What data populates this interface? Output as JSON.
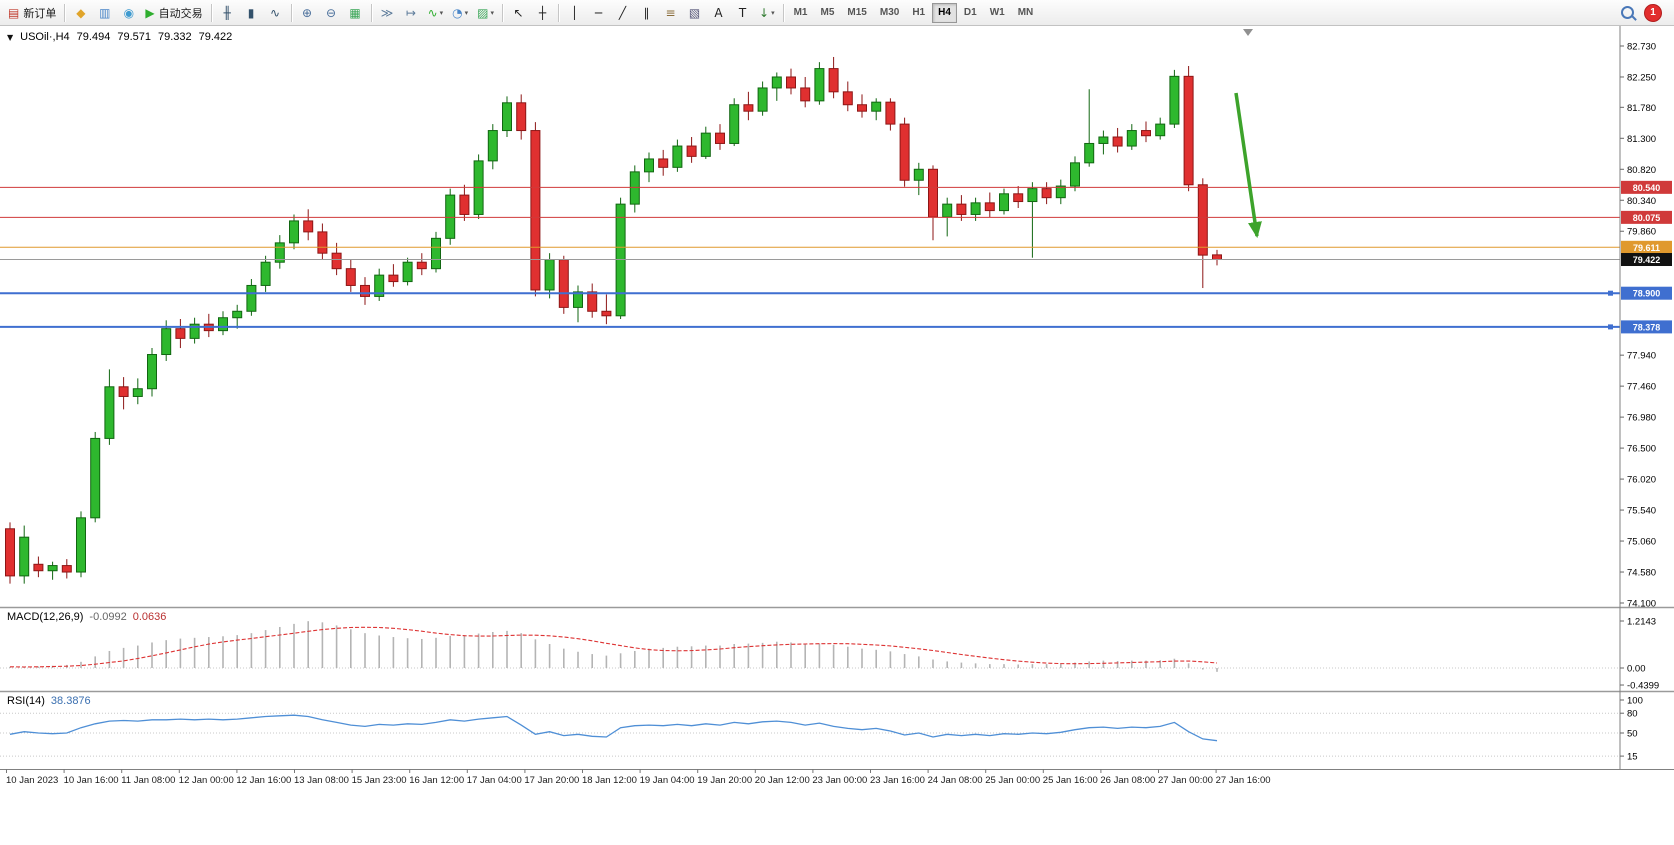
{
  "toolbar": {
    "caret_glyph": "▾",
    "items": [
      {
        "type": "button",
        "name": "new-order-button",
        "icon": "new-order",
        "glyph": "▤",
        "glyph_color": "#c0392b",
        "label": "新订单"
      },
      {
        "type": "sep"
      },
      {
        "type": "button",
        "name": "market-watch-button",
        "icon": "market-watch",
        "glyph": "◆",
        "glyph_color": "#e0a42a"
      },
      {
        "type": "button",
        "name": "data-window-button",
        "icon": "data-window",
        "glyph": "▥",
        "glyph_color": "#4a86c8"
      },
      {
        "type": "button",
        "name": "navigator-button",
        "icon": "navigator",
        "glyph": "◉",
        "glyph_color": "#3f9bd0"
      },
      {
        "type": "button",
        "name": "auto-trading-button",
        "icon": "auto-trading-play",
        "glyph": "▶",
        "glyph_color": "#2fae2f",
        "label": "自动交易"
      },
      {
        "type": "sep"
      },
      {
        "type": "button",
        "name": "bar-chart-mode-button",
        "icon": "ohlc-bars",
        "glyph": "╫",
        "glyph_color": "#33516b"
      },
      {
        "type": "button",
        "name": "candlestick-mode-button",
        "icon": "candlestick",
        "glyph": "▮",
        "glyph_color": "#33516b"
      },
      {
        "type": "button",
        "name": "line-chart-mode-button",
        "icon": "line-chart",
        "glyph": "∿",
        "glyph_color": "#33516b"
      },
      {
        "type": "sep"
      },
      {
        "type": "button",
        "name": "zoom-in-button",
        "icon": "zoom-in",
        "glyph": "⊕",
        "glyph_color": "#4a6f9b"
      },
      {
        "type": "button",
        "name": "zoom-out-button",
        "icon": "zoom-out",
        "glyph": "⊖",
        "glyph_color": "#4a6f9b"
      },
      {
        "type": "button",
        "name": "tile-windows-button",
        "icon": "tile-windows",
        "glyph": "▦",
        "glyph_color": "#3aa657"
      },
      {
        "type": "sep"
      },
      {
        "type": "button",
        "name": "auto-scroll-button",
        "icon": "auto-scroll",
        "glyph": "≫",
        "glyph_color": "#5b7a99"
      },
      {
        "type": "button",
        "name": "chart-shift-button",
        "icon": "chart-shift",
        "glyph": "↦",
        "glyph_color": "#5b7a99"
      },
      {
        "type": "button",
        "name": "indicators-button",
        "icon": "indicators",
        "glyph": "∿",
        "glyph_color": "#2fae2f",
        "caret": true
      },
      {
        "type": "button",
        "name": "periods-button",
        "icon": "clock",
        "glyph": "◔",
        "glyph_color": "#4a86c8",
        "caret": true
      },
      {
        "type": "button",
        "name": "templates-button",
        "icon": "templates",
        "glyph": "▨",
        "glyph_color": "#3aa657",
        "caret": true
      },
      {
        "type": "sep"
      },
      {
        "type": "button",
        "name": "cursor-button",
        "icon": "cursor-arrow",
        "glyph": "↖",
        "glyph_color": "#222222"
      },
      {
        "type": "button",
        "name": "crosshair-button",
        "icon": "crosshair",
        "glyph": "┼",
        "glyph_color": "#222222"
      },
      {
        "type": "sep"
      },
      {
        "type": "button",
        "name": "vertical-line-button",
        "icon": "vertical-line",
        "glyph": "│",
        "glyph_color": "#222222"
      },
      {
        "type": "button",
        "name": "horizontal-line-button",
        "icon": "horizontal-line",
        "glyph": "─",
        "glyph_color": "#222222"
      },
      {
        "type": "button",
        "name": "trendline-button",
        "icon": "trendline",
        "glyph": "╱",
        "glyph_color": "#222222"
      },
      {
        "type": "button",
        "name": "channel-button",
        "icon": "equidistant-channel",
        "glyph": "∥",
        "glyph_color": "#222222"
      },
      {
        "type": "button",
        "name": "fibonacci-button",
        "icon": "fibonacci",
        "glyph": "≡",
        "glyph_color": "#8a6d3b"
      },
      {
        "type": "button",
        "name": "shapes-button",
        "icon": "shapes",
        "glyph": "▧",
        "glyph_color": "#555577"
      },
      {
        "type": "button",
        "name": "text-button",
        "icon": "text",
        "glyph": "A",
        "glyph_color": "#222222"
      },
      {
        "type": "button",
        "name": "text-label-button",
        "icon": "text-label",
        "glyph": "T",
        "glyph_color": "#222222"
      },
      {
        "type": "button",
        "name": "arrows-button",
        "icon": "arrow-objects",
        "glyph": "↓",
        "glyph_color": "#2f7a2f",
        "caret": true
      },
      {
        "type": "sep"
      },
      {
        "type": "tf",
        "label": "M1"
      },
      {
        "type": "tf",
        "label": "M5"
      },
      {
        "type": "tf",
        "label": "M15"
      },
      {
        "type": "tf",
        "label": "M30"
      },
      {
        "type": "tf",
        "label": "H1"
      },
      {
        "type": "tf",
        "label": "H4",
        "active": true
      },
      {
        "type": "tf",
        "label": "D1"
      },
      {
        "type": "tf",
        "label": "W1"
      },
      {
        "type": "tf",
        "label": "MN"
      },
      {
        "type": "spacer"
      },
      {
        "type": "search",
        "name": "search-button"
      },
      {
        "type": "badge",
        "name": "notification-badge",
        "label": "1"
      }
    ]
  },
  "chart": {
    "header": {
      "collapse_icon": "▼",
      "symbol": "USOil·,H4",
      "open": "79.494",
      "high": "79.571",
      "low": "79.332",
      "close": "79.422"
    }
  },
  "chart_data": {
    "type": "candlestick",
    "symbol": "USOil",
    "timeframe": "H4",
    "colors": {
      "up": "#2eb82e",
      "up_border": "#116611",
      "down": "#e03030",
      "down_border": "#8d1616",
      "macd_histogram": "#b4b4b4",
      "macd_signal": "#dd3333",
      "rsi_line": "#4f8fd6",
      "axis_line": "#808080"
    },
    "y_axis": {
      "min": 74.1,
      "max": 82.73,
      "ticks": [
        82.73,
        82.25,
        81.78,
        81.3,
        80.82,
        80.34,
        79.86,
        77.94,
        77.46,
        76.98,
        76.5,
        76.02,
        75.54,
        75.06,
        74.58,
        74.1
      ]
    },
    "hlines": [
      {
        "price": 80.54,
        "label": "80.540",
        "color": "#d03a3a",
        "width": 1,
        "handles": false
      },
      {
        "price": 80.075,
        "label": "80.075",
        "color": "#d03a3a",
        "width": 1,
        "handles": false
      },
      {
        "price": 79.611,
        "label": "79.611",
        "color": "#e0992e",
        "width": 1,
        "handles": false
      },
      {
        "price": 78.9,
        "label": "78.900",
        "color": "#3f6fd0",
        "width": 2,
        "handles": true
      },
      {
        "price": 78.378,
        "label": "78.378",
        "color": "#3f6fd0",
        "width": 2,
        "handles": true
      }
    ],
    "current_price": {
      "price": 79.422,
      "label": "79.422",
      "badge_color": "#111111",
      "line_color": "#9a9a9a"
    },
    "annotation_arrow": {
      "color": "#3da32b",
      "from": [
        1236,
        93
      ],
      "to": [
        1257,
        236
      ]
    },
    "candles": [
      [
        75.25,
        75.35,
        74.4,
        74.52
      ],
      [
        74.52,
        75.3,
        74.4,
        75.12
      ],
      [
        74.7,
        74.82,
        74.5,
        74.6
      ],
      [
        74.6,
        74.74,
        74.46,
        74.68
      ],
      [
        74.68,
        74.78,
        74.48,
        74.58
      ],
      [
        74.58,
        75.52,
        74.5,
        75.42
      ],
      [
        75.42,
        76.75,
        75.35,
        76.65
      ],
      [
        76.65,
        77.72,
        76.55,
        77.45
      ],
      [
        77.45,
        77.6,
        77.1,
        77.3
      ],
      [
        77.3,
        77.58,
        77.18,
        77.42
      ],
      [
        77.42,
        78.05,
        77.3,
        77.95
      ],
      [
        77.95,
        78.48,
        77.85,
        78.35
      ],
      [
        78.35,
        78.5,
        78.05,
        78.2
      ],
      [
        78.2,
        78.52,
        78.12,
        78.42
      ],
      [
        78.42,
        78.58,
        78.22,
        78.32
      ],
      [
        78.32,
        78.62,
        78.25,
        78.52
      ],
      [
        78.52,
        78.72,
        78.35,
        78.62
      ],
      [
        78.62,
        79.12,
        78.55,
        79.02
      ],
      [
        79.02,
        79.48,
        78.92,
        79.38
      ],
      [
        79.38,
        79.8,
        79.28,
        79.68
      ],
      [
        79.68,
        80.12,
        79.58,
        80.02
      ],
      [
        80.02,
        80.2,
        79.72,
        79.85
      ],
      [
        79.85,
        79.98,
        79.42,
        79.52
      ],
      [
        79.52,
        79.68,
        79.18,
        79.28
      ],
      [
        79.28,
        79.42,
        78.92,
        79.02
      ],
      [
        79.02,
        79.15,
        78.72,
        78.85
      ],
      [
        78.85,
        79.28,
        78.78,
        79.18
      ],
      [
        79.18,
        79.35,
        79.0,
        79.08
      ],
      [
        79.08,
        79.45,
        79.02,
        79.38
      ],
      [
        79.38,
        79.52,
        79.18,
        79.28
      ],
      [
        79.28,
        79.85,
        79.22,
        79.75
      ],
      [
        79.75,
        80.52,
        79.65,
        80.42
      ],
      [
        80.42,
        80.58,
        80.02,
        80.12
      ],
      [
        80.12,
        81.05,
        80.05,
        80.95
      ],
      [
        80.95,
        81.52,
        80.82,
        81.42
      ],
      [
        81.42,
        81.95,
        81.32,
        81.85
      ],
      [
        81.85,
        81.98,
        81.28,
        81.42
      ],
      [
        81.42,
        81.55,
        78.85,
        78.95
      ],
      [
        78.95,
        79.52,
        78.82,
        79.42
      ],
      [
        79.42,
        79.48,
        78.58,
        78.68
      ],
      [
        78.68,
        79.02,
        78.45,
        78.92
      ],
      [
        78.92,
        79.05,
        78.52,
        78.62
      ],
      [
        78.62,
        78.88,
        78.42,
        78.55
      ],
      [
        78.55,
        80.38,
        78.5,
        80.28
      ],
      [
        80.28,
        80.88,
        80.15,
        80.78
      ],
      [
        80.78,
        81.08,
        80.62,
        80.98
      ],
      [
        80.98,
        81.12,
        80.72,
        80.85
      ],
      [
        80.85,
        81.28,
        80.78,
        81.18
      ],
      [
        81.18,
        81.32,
        80.92,
        81.02
      ],
      [
        81.02,
        81.48,
        80.98,
        81.38
      ],
      [
        81.38,
        81.52,
        81.12,
        81.22
      ],
      [
        81.22,
        81.92,
        81.18,
        81.82
      ],
      [
        81.82,
        82.02,
        81.58,
        81.72
      ],
      [
        81.72,
        82.18,
        81.65,
        82.08
      ],
      [
        82.08,
        82.32,
        81.88,
        82.25
      ],
      [
        82.25,
        82.38,
        81.98,
        82.08
      ],
      [
        82.08,
        82.25,
        81.78,
        81.88
      ],
      [
        81.88,
        82.48,
        81.82,
        82.38
      ],
      [
        82.38,
        82.56,
        81.92,
        82.02
      ],
      [
        82.02,
        82.18,
        81.72,
        81.82
      ],
      [
        81.82,
        81.98,
        81.62,
        81.72
      ],
      [
        81.72,
        81.92,
        81.58,
        81.86
      ],
      [
        81.86,
        81.92,
        81.42,
        81.52
      ],
      [
        81.52,
        81.62,
        80.55,
        80.65
      ],
      [
        80.65,
        80.92,
        80.42,
        80.82
      ],
      [
        80.82,
        80.88,
        79.72,
        80.08
      ],
      [
        80.08,
        80.38,
        79.78,
        80.28
      ],
      [
        80.28,
        80.42,
        80.02,
        80.12
      ],
      [
        80.12,
        80.38,
        80.02,
        80.3
      ],
      [
        80.3,
        80.46,
        80.08,
        80.18
      ],
      [
        80.18,
        80.52,
        80.12,
        80.44
      ],
      [
        80.44,
        80.56,
        80.22,
        80.32
      ],
      [
        80.32,
        80.62,
        79.45,
        80.52
      ],
      [
        80.52,
        80.62,
        80.28,
        80.38
      ],
      [
        80.38,
        80.66,
        80.28,
        80.56
      ],
      [
        80.56,
        81.02,
        80.48,
        80.92
      ],
      [
        80.92,
        82.06,
        80.86,
        81.22
      ],
      [
        81.22,
        81.42,
        81.05,
        81.32
      ],
      [
        81.32,
        81.46,
        81.08,
        81.18
      ],
      [
        81.18,
        81.52,
        81.12,
        81.42
      ],
      [
        81.42,
        81.56,
        81.24,
        81.34
      ],
      [
        81.34,
        81.62,
        81.28,
        81.52
      ],
      [
        81.52,
        82.36,
        81.46,
        82.26
      ],
      [
        82.26,
        82.42,
        80.48,
        80.58
      ],
      [
        80.58,
        80.68,
        78.98,
        79.49
      ],
      [
        79.494,
        79.571,
        79.332,
        79.422
      ]
    ],
    "time_labels": [
      "10 Jan 2023",
      "10 Jan 16:00",
      "11 Jan 08:00",
      "12 Jan 00:00",
      "12 Jan 16:00",
      "13 Jan 08:00",
      "15 Jan 23:00",
      "16 Jan 12:00",
      "17 Jan 04:00",
      "17 Jan 20:00",
      "18 Jan 12:00",
      "19 Jan 04:00",
      "19 Jan 20:00",
      "20 Jan 12:00",
      "23 Jan 00:00",
      "23 Jan 16:00",
      "24 Jan 08:00",
      "25 Jan 00:00",
      "25 Jan 16:00",
      "26 Jan 08:00",
      "27 Jan 00:00",
      "27 Jan 16:00"
    ],
    "macd": {
      "name": "MACD(12,26,9)",
      "value_main": "-0.0992",
      "value_signal": "0.0636",
      "axis_labels": [
        {
          "v": 1.2143,
          "t": "1.2143"
        },
        {
          "v": 0,
          "t": "0.00"
        },
        {
          "v": -0.4399,
          "t": "-0.4399"
        }
      ],
      "values": [
        0.03,
        0.02,
        0.04,
        0.06,
        0.08,
        0.16,
        0.3,
        0.44,
        0.52,
        0.58,
        0.66,
        0.72,
        0.76,
        0.78,
        0.8,
        0.82,
        0.85,
        0.9,
        0.98,
        1.06,
        1.14,
        1.21,
        1.18,
        1.1,
        1.0,
        0.9,
        0.84,
        0.8,
        0.77,
        0.75,
        0.78,
        0.83,
        0.85,
        0.89,
        0.93,
        0.96,
        0.9,
        0.74,
        0.62,
        0.5,
        0.42,
        0.36,
        0.32,
        0.38,
        0.44,
        0.5,
        0.52,
        0.55,
        0.56,
        0.58,
        0.58,
        0.62,
        0.63,
        0.65,
        0.68,
        0.66,
        0.62,
        0.63,
        0.6,
        0.55,
        0.5,
        0.47,
        0.43,
        0.36,
        0.3,
        0.22,
        0.17,
        0.14,
        0.12,
        0.1,
        0.1,
        0.09,
        0.1,
        0.1,
        0.11,
        0.14,
        0.17,
        0.19,
        0.18,
        0.19,
        0.19,
        0.2,
        0.24,
        0.12,
        -0.04,
        -0.0992
      ]
    },
    "rsi": {
      "name": "RSI(14)",
      "value": "38.3876",
      "levels": [
        100,
        80,
        50,
        15
      ],
      "values": [
        48,
        52,
        50,
        49,
        50,
        58,
        64,
        68,
        69,
        68,
        70,
        70,
        71,
        70,
        71,
        70,
        71,
        73,
        75,
        76,
        77,
        75,
        70,
        66,
        62,
        60,
        63,
        62,
        64,
        63,
        66,
        70,
        68,
        71,
        73,
        75,
        62,
        48,
        52,
        46,
        48,
        45,
        44,
        58,
        61,
        62,
        61,
        63,
        61,
        64,
        62,
        66,
        64,
        67,
        68,
        66,
        62,
        65,
        60,
        57,
        55,
        57,
        53,
        47,
        50,
        44,
        48,
        46,
        48,
        46,
        49,
        48,
        50,
        49,
        51,
        55,
        58,
        59,
        57,
        59,
        58,
        60,
        66,
        52,
        41,
        38.4
      ]
    }
  }
}
